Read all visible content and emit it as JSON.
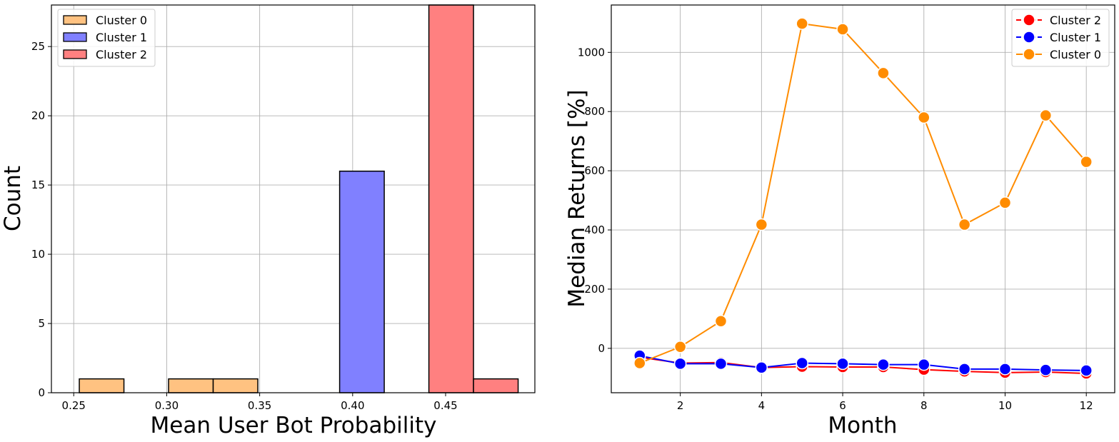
{
  "chart_data": [
    {
      "type": "bar",
      "xlabel": "Mean User Bot Probability",
      "ylabel": "Count",
      "xlim": [
        0.238,
        0.498
      ],
      "ylim": [
        0,
        28
      ],
      "xticks": [
        "0.25",
        "0.30",
        "0.35",
        "0.40",
        "0.45"
      ],
      "yticks": [
        "0",
        "5",
        "10",
        "15",
        "20",
        "25"
      ],
      "grid": true,
      "legend_position": "top-left",
      "series": [
        {
          "name": "Cluster 0",
          "color": "#ffc281",
          "bins": [
            {
              "x0": 0.253,
              "x1": 0.277,
              "count": 1
            },
            {
              "x0": 0.301,
              "x1": 0.325,
              "count": 1
            },
            {
              "x0": 0.325,
              "x1": 0.349,
              "count": 1
            }
          ]
        },
        {
          "name": "Cluster 1",
          "color": "#8080ff",
          "bins": [
            {
              "x0": 0.393,
              "x1": 0.417,
              "count": 16
            }
          ]
        },
        {
          "name": "Cluster 2",
          "color": "#ff8080",
          "bins": [
            {
              "x0": 0.441,
              "x1": 0.465,
              "count": 28
            },
            {
              "x0": 0.465,
              "x1": 0.489,
              "count": 1
            }
          ]
        }
      ]
    },
    {
      "type": "line",
      "xlabel": "Month",
      "ylabel": "Median Returns [%]",
      "xlim": [
        0.3,
        12.7
      ],
      "ylim": [
        -150,
        1160
      ],
      "xticks": [
        "2",
        "4",
        "6",
        "8",
        "10",
        "12"
      ],
      "yticks": [
        "0",
        "200",
        "400",
        "600",
        "800",
        "1000"
      ],
      "grid": true,
      "legend_position": "top-right",
      "x": [
        1,
        2,
        3,
        4,
        5,
        6,
        7,
        8,
        9,
        10,
        11,
        12
      ],
      "series": [
        {
          "name": "Cluster 2",
          "color": "#ff0000",
          "values": [
            -30,
            -50,
            -48,
            -65,
            -62,
            -63,
            -63,
            -72,
            -78,
            -82,
            -80,
            -85
          ]
        },
        {
          "name": "Cluster 1",
          "color": "#0000ff",
          "values": [
            -25,
            -52,
            -52,
            -65,
            -50,
            -52,
            -55,
            -55,
            -70,
            -70,
            -73,
            -75
          ]
        },
        {
          "name": "Cluster 0",
          "color": "#ff8c00",
          "values": [
            -50,
            5,
            92,
            418,
            1097,
            1078,
            930,
            780,
            418,
            492,
            787,
            630
          ]
        }
      ]
    }
  ]
}
